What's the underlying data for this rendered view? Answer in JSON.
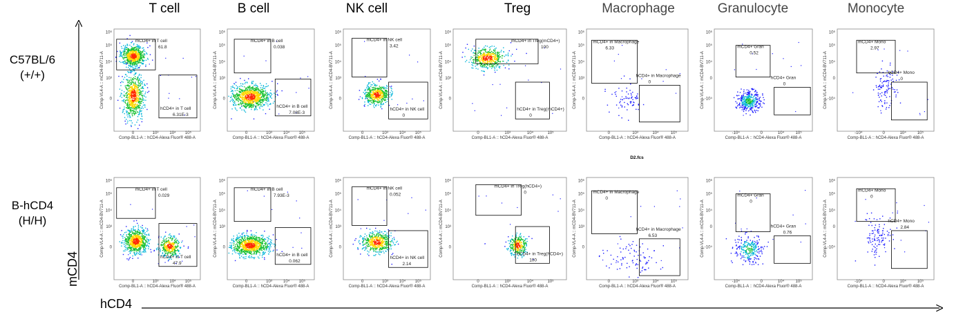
{
  "chart_data": {
    "type": "scatter",
    "title": "",
    "xlabel": "hCD4",
    "ylabel": "mCD4",
    "columns": [
      "T cell",
      "B cell",
      "NK cell",
      "Treg",
      "Macrophage",
      "Granulocyte",
      "Monocyte"
    ],
    "rows": [
      {
        "label_line1": "C57BL/6",
        "label_line2": "(+/+)"
      },
      {
        "label_line1": "B-hCD4",
        "label_line2": "(H/H)"
      }
    ],
    "panel_x_axis": [
      "Comp-BL1-A :: hCD4-Alexa Fluor® 488-A",
      "Comp-BL1-A :: hCD4-Alexa Fluor® 488-A",
      "Comp-BL1-A :: hCD4-Alexa Fluor® 488-A",
      "Comp-BL1-A :: hCD4-Alexa Fluor® 488-A",
      "Comp-BL1-A :: hCD4-Alexa Fluor® 488-A",
      "Comp-BL1-A :: hCD4-Alexa Fluor® 488-A",
      "Comp-BL1-A :: hCD4-Alexa Fluor® 488-A"
    ],
    "panel_y_axis": [
      "Comp-VL4-A :: mCD4-BV711-A",
      "Comp-VL4-A :: mCD4-BV711-A",
      "Comp-VL4-A :: mCD4-BV711-A",
      "Comp-VL4-A :: mCD4-BV711-A",
      "Comp-VL4-A :: mCD4-BV711-A",
      "Comp-VL4-A :: mCD4-BV711-A",
      "Comp-VL4-A :: mCD4-BV711-A"
    ],
    "file_label": "D2.fcs",
    "panels": [
      {
        "row": 0,
        "col": 0,
        "gates": [
          {
            "name": "mCD4+ in T cell",
            "value": "61.8"
          },
          {
            "name": "hCD4+ in T cell",
            "value": "6.31E-3"
          }
        ]
      },
      {
        "row": 0,
        "col": 1,
        "gates": [
          {
            "name": "mCD4+ in B cell",
            "value": "0.038"
          },
          {
            "name": "hCD4+ in B cell",
            "value": "7.08E-3"
          }
        ]
      },
      {
        "row": 0,
        "col": 2,
        "gates": [
          {
            "name": "mCD4+ in NK cell",
            "value": "3.42"
          },
          {
            "name": "hCD4+ in NK cell",
            "value": "0"
          }
        ]
      },
      {
        "row": 0,
        "col": 3,
        "gates": [
          {
            "name": "mCD4+ in Treg(mCD4+)",
            "value": "100"
          },
          {
            "name": "hCD4+ in Treg(mCD4+)",
            "value": "0"
          }
        ]
      },
      {
        "row": 0,
        "col": 4,
        "gates": [
          {
            "name": "mCD4+ in Macrophage",
            "value": "6.33"
          },
          {
            "name": "hCD4+ in Macrophage",
            "value": "0"
          }
        ]
      },
      {
        "row": 0,
        "col": 5,
        "gates": [
          {
            "name": "mCD4+ Gran",
            "value": "0.52"
          },
          {
            "name": "hCD4+ Gran",
            "value": "0"
          }
        ]
      },
      {
        "row": 0,
        "col": 6,
        "gates": [
          {
            "name": "mCD4+ Mono",
            "value": "2.97"
          },
          {
            "name": "hCD4+ Mono",
            "value": "0"
          }
        ]
      },
      {
        "row": 1,
        "col": 0,
        "gates": [
          {
            "name": "mCD4+ in T cell",
            "value": "0.029"
          },
          {
            "name": "hCD4+ in T cell",
            "value": "47.9"
          }
        ]
      },
      {
        "row": 1,
        "col": 1,
        "gates": [
          {
            "name": "mCD4+ in B cell",
            "value": "7.93E-3"
          },
          {
            "name": "hCD4+ in B cell",
            "value": "0.062"
          }
        ]
      },
      {
        "row": 1,
        "col": 2,
        "gates": [
          {
            "name": "mCD4+ in NK cell",
            "value": "0.052"
          },
          {
            "name": "hCD4+ in NK cell",
            "value": "2.14"
          }
        ]
      },
      {
        "row": 1,
        "col": 3,
        "gates": [
          {
            "name": "mCD4+ in Treg(hCD4+)",
            "value": "0"
          },
          {
            "name": "hCD4+ in Treg(hCD4+)",
            "value": "100"
          }
        ]
      },
      {
        "row": 1,
        "col": 4,
        "gates": [
          {
            "name": "mCD4+ in Macrophage",
            "value": "0"
          },
          {
            "name": "hCD4+ in Macrophage",
            "value": "6.53"
          }
        ]
      },
      {
        "row": 1,
        "col": 5,
        "gates": [
          {
            "name": "mCD4+ Gran",
            "value": "0"
          },
          {
            "name": "hCD4+ Gran",
            "value": "0.76"
          }
        ]
      },
      {
        "row": 1,
        "col": 6,
        "gates": [
          {
            "name": "mCD4+ Mono",
            "value": "0"
          },
          {
            "name": "hCD4+ Mono",
            "value": "2.84"
          }
        ]
      }
    ],
    "x_ticks": [
      "0",
      "10³",
      "10⁴",
      "10⁵"
    ],
    "y_ticks": [
      "0",
      "10³",
      "10⁴",
      "10⁵",
      "10⁶"
    ],
    "x_ticks_signed": [
      "-10⁴",
      "0",
      "10⁴",
      "10⁵"
    ],
    "y_ticks_signed": [
      "-10⁴",
      "0",
      "10⁴",
      "10⁵",
      "10⁶"
    ],
    "colors": {
      "dense": "#ff2a00",
      "high": "#ffd700",
      "mid": "#18c030",
      "low": "#00b4d8",
      "sparse": "#1a1aff"
    }
  }
}
